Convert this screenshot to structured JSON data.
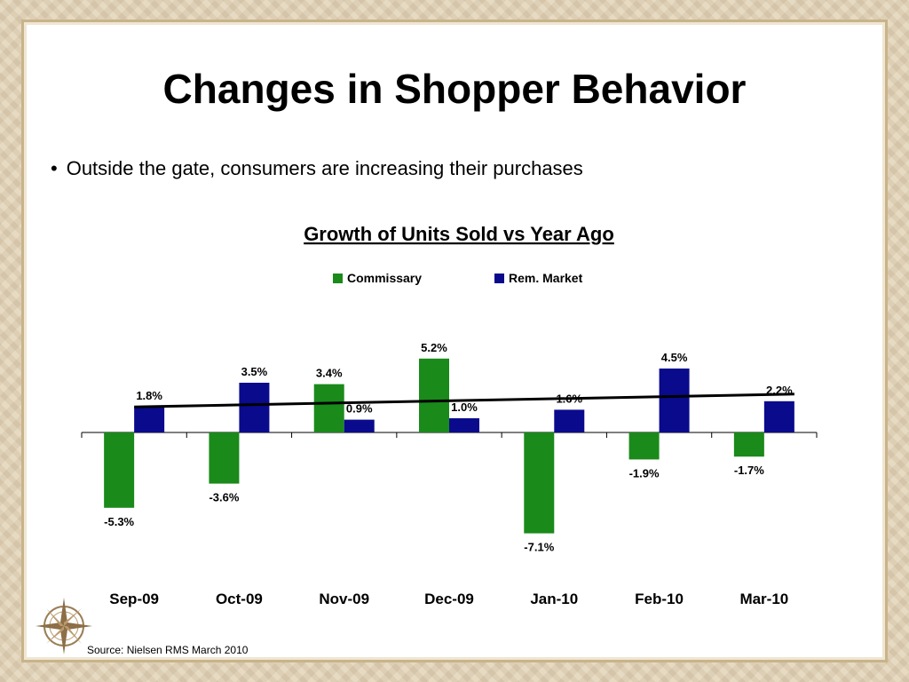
{
  "slide": {
    "title": "Changes in Shopper Behavior",
    "bullet_marker": "•",
    "bullet_text": "Outside the gate, consumers are increasing their purchases",
    "source": "Source: Nielsen RMS March 2010",
    "logo_icon": "compass-rose-icon"
  },
  "chart_data": {
    "type": "bar",
    "title": "Growth of Units Sold vs Year Ago",
    "categories": [
      "Sep-09",
      "Oct-09",
      "Nov-09",
      "Dec-09",
      "Jan-10",
      "Feb-10",
      "Mar-10"
    ],
    "series": [
      {
        "name": "Commissary",
        "color": "#1a8a1a",
        "values": [
          -5.3,
          -3.6,
          3.4,
          5.2,
          -7.1,
          -1.9,
          -1.7
        ],
        "labels": [
          "-5.3%",
          "-3.6%",
          "3.4%",
          "5.2%",
          "-7.1%",
          "-1.9%",
          "-1.7%"
        ]
      },
      {
        "name": "Rem. Market",
        "color": "#0a0a8c",
        "values": [
          1.8,
          3.5,
          0.9,
          1.0,
          1.6,
          4.5,
          2.2
        ],
        "labels": [
          "1.8%",
          "3.5%",
          "0.9%",
          "1.0%",
          "1.6%",
          "4.5%",
          "2.2%"
        ]
      }
    ],
    "trendline": {
      "series": "Rem. Market",
      "start": 1.8,
      "end": 2.7,
      "color": "#000000"
    },
    "legend": "top-center",
    "grid": false
  }
}
